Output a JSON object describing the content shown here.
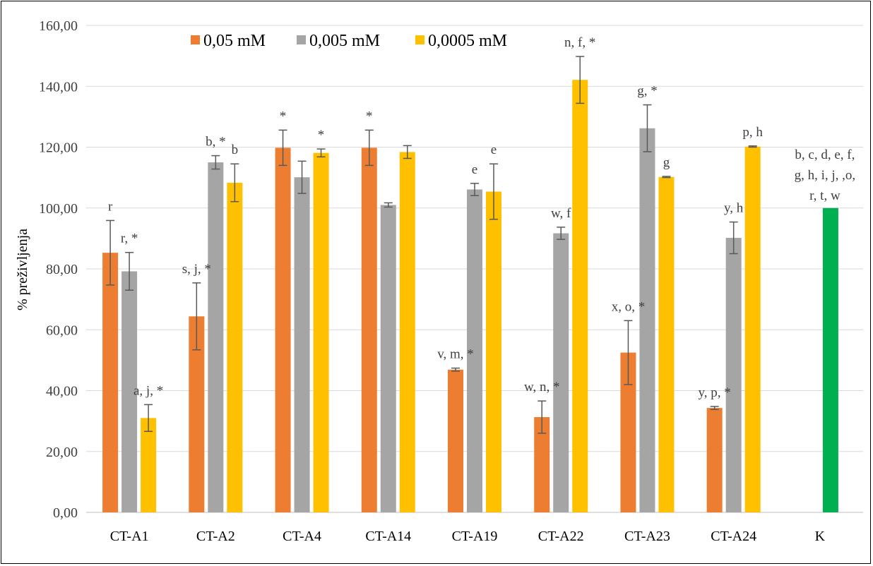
{
  "chart_data": {
    "type": "bar",
    "title": "",
    "xlabel": "",
    "ylabel": "% preživljenja",
    "ylim": [
      0,
      160
    ],
    "yticks": [
      "0,00",
      "20,00",
      "40,00",
      "60,00",
      "80,00",
      "100,00",
      "120,00",
      "140,00",
      "160,00"
    ],
    "grid": true,
    "legend_position": "top",
    "categories": [
      "CT-A1",
      "CT-A2",
      "CT-A4",
      "CT-A14",
      "CT-A19",
      "CT-A22",
      "CT-A23",
      "CT-A24",
      "K"
    ],
    "series": [
      {
        "name": "0,05 mM",
        "color": "#ED7D31",
        "values": [
          85.3,
          64.4,
          119.8,
          119.8,
          46.9,
          31.3,
          52.5,
          34.3,
          null
        ],
        "errors": [
          10.6,
          11.0,
          5.8,
          5.8,
          0.5,
          5.3,
          10.5,
          0.5,
          null
        ],
        "labels": [
          "r",
          "s, j, *",
          "*",
          "*",
          "v, m, *",
          "w, n, *",
          "x, o, *",
          "y, p, *",
          ""
        ]
      },
      {
        "name": "0,005 mM",
        "color": "#A5A5A5",
        "values": [
          79.2,
          115.0,
          110.1,
          101.0,
          106.1,
          91.7,
          126.2,
          90.2,
          null
        ],
        "errors": [
          6.2,
          2.2,
          5.3,
          0.7,
          2.0,
          2.0,
          7.7,
          5.2,
          null
        ],
        "labels": [
          "r, *",
          "b, *",
          "",
          "",
          "e",
          "w, f",
          "g, *",
          "y, h",
          ""
        ]
      },
      {
        "name": "0,0005 mM",
        "color": "#FFC000",
        "values": [
          31.0,
          108.3,
          118.1,
          118.4,
          105.4,
          142.1,
          110.2,
          120.2,
          null
        ],
        "errors": [
          4.4,
          6.2,
          1.3,
          2.1,
          9.1,
          7.7,
          0.2,
          0.2,
          null
        ],
        "labels": [
          "a, j, *",
          "b",
          "*",
          "",
          "e",
          "n, f, *",
          "g",
          "p, h",
          ""
        ]
      },
      {
        "name": "",
        "color": "#00B050",
        "values": [
          null,
          null,
          null,
          null,
          null,
          null,
          null,
          null,
          100.0
        ],
        "errors": [
          null,
          null,
          null,
          null,
          null,
          null,
          null,
          null,
          null
        ],
        "label_lines": [
          "b, c, d, e, f,",
          "g, h, i, j, ,o,",
          "r, t, w"
        ]
      }
    ]
  }
}
